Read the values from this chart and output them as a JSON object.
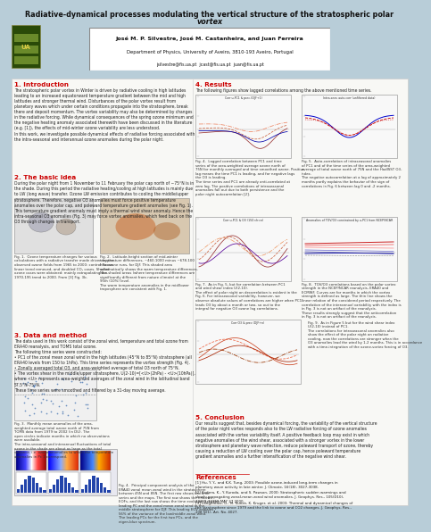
{
  "title_line1": "Radiative-dynamical processes modulating the vertical structure of the stratospheric polar",
  "title_line2": "vortex",
  "author_line": "José M. P. Silvestre, José M. Castanheira, and Juan Ferreira",
  "affiliation_line": "Department of Physics, University of Aveiro, 3810-193 Aveiro, Portugal",
  "email_line": "jsilvestre@fis.ua.pt  jcast@fis.ua.pt  juan@fis.ua.pt",
  "title_bg": "#cde4ef",
  "body_bg": "#f5f5f5",
  "section_color": "#cc0000",
  "body_text_color": "#222222",
  "poster_bg": "#b8cdd8",
  "section1_title": "1. Introduction",
  "section1_text": "The stratospheric polar vortex in Winter is driven by radiative cooling in high latitudes\nleading to an increased equatorward temperature gradient between the mid and high\nlatitudes and stronger thermal wind. Disturbances of the polar vortex result from\nplanetary waves which under certain conditions propagate into the stratosphere, break\nthere and deposit momentum. The vortex variability may also be determined by changes\nin the radiative forcing. While dynamical consequences of the spring ozone minimum and\nthe negative heating anomaly associated therewith have been discussed in the literature\n(e.g. [1]), the effects of mid-winter ozone variability are less understood.\nIn this work, we investigate possible dynamical effects of radiative forcing associated with\nthe intra-seasonal and interannual ozone anomalies during the polar night.",
  "section2_title": "2. The basic idea",
  "section2_text": "During the polar night from 1 November to 11 February the polar cap north of ~75°N is in\nthe shade. During this period the radiative heating/cooling at high latitudes is mainly due\nto LW (long wave) transfer. Ozone LW emission contributes to cooling the middle/upper\nstratosphere. Therefore, negative O3 anomalies must force positive temperature\nanomalies over the polar cap, and poleward temperature gradient anomalies (see Fig. 1).\nThis temperature gradient anomaly must imply a thermal wind shear anomaly. Hence the\nintra-seasonal O3 anomalies (Fig. 3) may force vortex anomalies, which feed back on the\nO3 through changes in transport.",
  "section3_title": "3. Data and method",
  "section3_text": "The data used in this work consist of the zonal wind, temperature and total ozone from\nERA40 reanalysis, and TOMS total ozone.\nThe following time series were constructed:\n• PC1 of the zonal mean zonal wind in the high latitudes (45°N to 85°N) stratosphere (all\nERA40 levels from 150 to 1hPa). This time series represents the vortex strength (Fig. 4).\n• Zonally averaged total O3, and area-weighted average of total O3 north of 75°N.\n• The vortex shear in the middle/upper stratosphere, U(2-10)=[<U>(2hPa) - <U>(10hPa)],\nwhere <U> represents area-weighted averages of the zonal wind in the latitudinal band\n57.5°N-75°N.\nThese time series were smoothed and filtered by a 31-day moving average.",
  "section4_title": "4. Results",
  "section4_text": "The following figures show lagged correlations among the above mentioned time series.",
  "section5_title": "5. Conclusion",
  "section5_text": "Our results suggest that, besides dynamical forcing, the variability of the vertical structure\nof the polar night vortex responds also to the LW radiative forcing of ozone anomalies\nassociated with the vortex variability itself. A positive feedback loop may exist in which\nnegative anomalies of the wind shear, associated with a stronger vortex in the lower\nstratosphere and planetary wave reflection, reduce poleward transport of ozone, thereby\ncausing a reduction of LW cooling over the polar cap, hence poleward temperature\ngradient anomalies and a further intensification of the negative wind shear.",
  "references_title": "References",
  "ref1": "[1] Hu, Y. Y., and K-K. Tung, 2003: Possible ozone-induced long-term changes in\nplanetary wave activity in late winter. J. Climate, 16(18), 3027-3038.",
  "ref2": "[2] Kodera, K., Y. Kuroda, and S. Pawson, 2000: Stratospheric sudden warmings and\nslowly propagating zonal-mean zonal wind anomalies. J. Geophys. Res., 105(D10),\n12351-12359 MAY 27 2000.",
  "ref3": "[3] Langematz, U., M. Kunze, K. Kruger, et al. 2003: Thermal and dynamical changes of\nthe stratosphere since 1979 and the link to ozone and CO2 changes. J. Geophys. Res.,\n108 (D1), Art. No. 4027."
}
